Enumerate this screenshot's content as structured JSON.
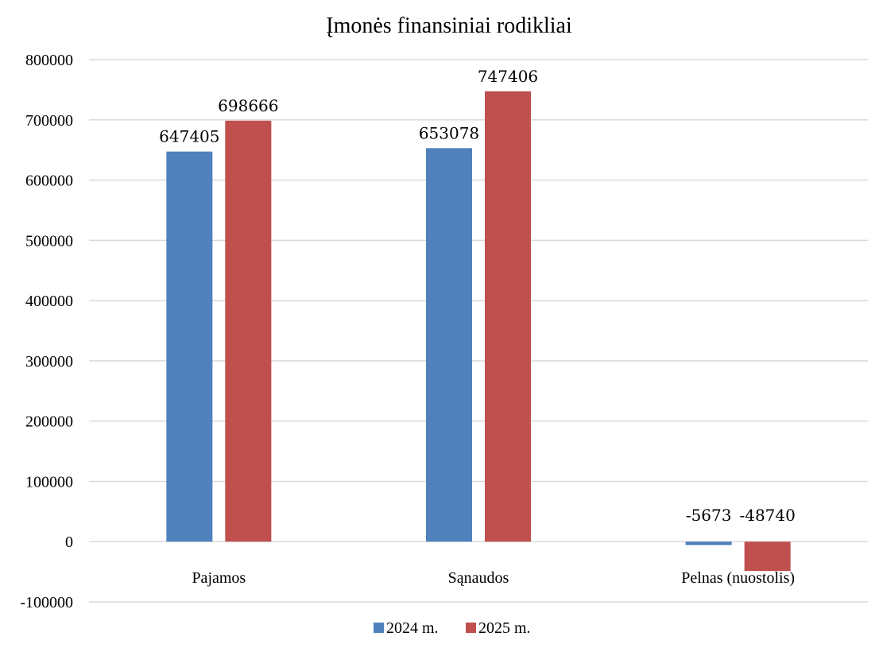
{
  "chart_data": {
    "type": "bar",
    "title": "Įmonės finansiniai rodikliai",
    "categories": [
      "Pajamos",
      "Sąnaudos",
      "Pelnas (nuostolis)"
    ],
    "series": [
      {
        "name": "2024 m.",
        "color": "#4f81bd",
        "values": [
          647405,
          653078,
          -5673
        ],
        "labels": [
          "647405",
          "653078",
          "-5673"
        ]
      },
      {
        "name": "2025 m.",
        "color": "#c0504d",
        "values": [
          698666,
          747406,
          -48740
        ],
        "labels": [
          "698666",
          "747406",
          "-48740"
        ]
      }
    ],
    "ylim": [
      -100000,
      800000
    ],
    "yticks": [
      800000,
      700000,
      600000,
      500000,
      400000,
      300000,
      200000,
      100000,
      0,
      -100000
    ],
    "ytick_labels": [
      "800000",
      "700000",
      "600000",
      "500000",
      "400000",
      "300000",
      "200000",
      "100000",
      "0",
      "-100000"
    ],
    "grid": true,
    "legend_position": "bottom"
  }
}
